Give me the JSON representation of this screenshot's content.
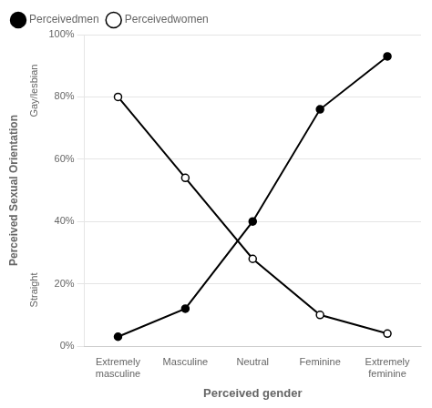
{
  "chart_data": {
    "type": "line",
    "x_label": "Perceived gender",
    "y_label": "Perceived Sexual Orientation",
    "annotations": [
      "Gay/lesbian",
      "Straight"
    ],
    "categories": [
      "Extremely\nmasculine",
      "Masculine",
      "Neutral",
      "Feminine",
      "Extremely\nfeminine"
    ],
    "series": [
      {
        "name": "Perceivedmen",
        "color": "#000000",
        "marker": "filled_circle",
        "values": [
          0.03,
          0.12,
          0.4,
          0.76,
          0.93
        ]
      },
      {
        "name": "Perceivedwomen",
        "color": "#000000",
        "marker": "open_circle",
        "values": [
          0.8,
          0.54,
          0.28,
          0.1,
          0.04
        ]
      }
    ],
    "ylim": [
      0,
      1.0
    ],
    "yticks": [
      {
        "value": 0,
        "label": "0%"
      },
      {
        "value": 0.2,
        "label": "20%"
      },
      {
        "value": 0.4,
        "label": "40%"
      },
      {
        "value": 0.6,
        "label": "60%"
      },
      {
        "value": 0.8,
        "label": "80%"
      },
      {
        "value": 1.0,
        "label": "100%"
      }
    ],
    "grid": "y",
    "legend": "upper left"
  }
}
